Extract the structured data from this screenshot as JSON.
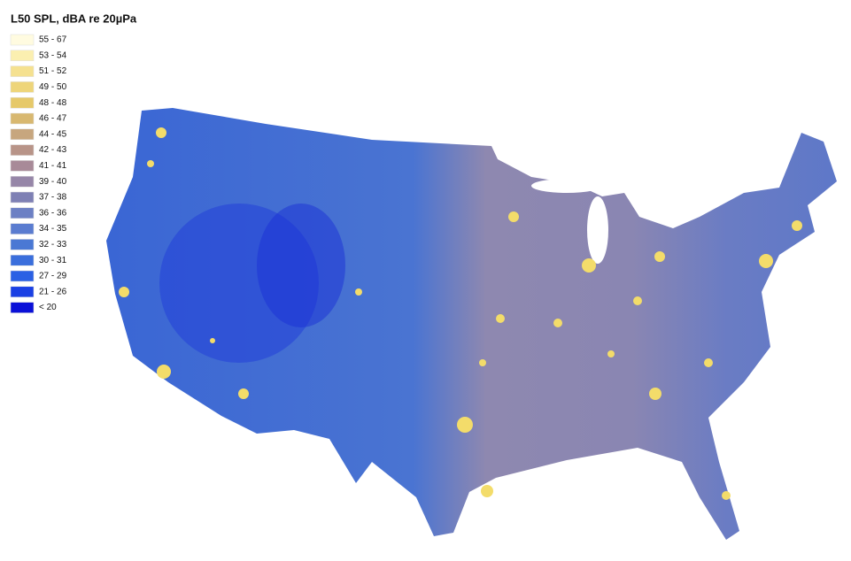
{
  "legend": {
    "title": "L50 SPL, dBA re 20µPa",
    "entries": [
      {
        "label": "55 - 67",
        "color": "#fffbe0"
      },
      {
        "label": "53 - 54",
        "color": "#fbefb0"
      },
      {
        "label": "51 - 52",
        "color": "#f5e190"
      },
      {
        "label": "49 - 50",
        "color": "#eed57a"
      },
      {
        "label": "48 - 48",
        "color": "#e6c96a"
      },
      {
        "label": "46 - 47",
        "color": "#d8b870"
      },
      {
        "label": "44 - 45",
        "color": "#c7a67e"
      },
      {
        "label": "42 - 43",
        "color": "#b89488"
      },
      {
        "label": "41 - 41",
        "color": "#a88a98"
      },
      {
        "label": "39 - 40",
        "color": "#9686a8"
      },
      {
        "label": "37 - 38",
        "color": "#7e80b4"
      },
      {
        "label": "36 - 36",
        "color": "#6c80c4"
      },
      {
        "label": "34 - 35",
        "color": "#5a7cd0"
      },
      {
        "label": "32 - 33",
        "color": "#4a78d4"
      },
      {
        "label": "30 - 31",
        "color": "#3a6edc"
      },
      {
        "label": "27 - 29",
        "color": "#2a60e4"
      },
      {
        "label": "21 - 26",
        "color": "#1a40e4"
      },
      {
        "label": "< 20",
        "color": "#0a10d8"
      }
    ]
  }
}
